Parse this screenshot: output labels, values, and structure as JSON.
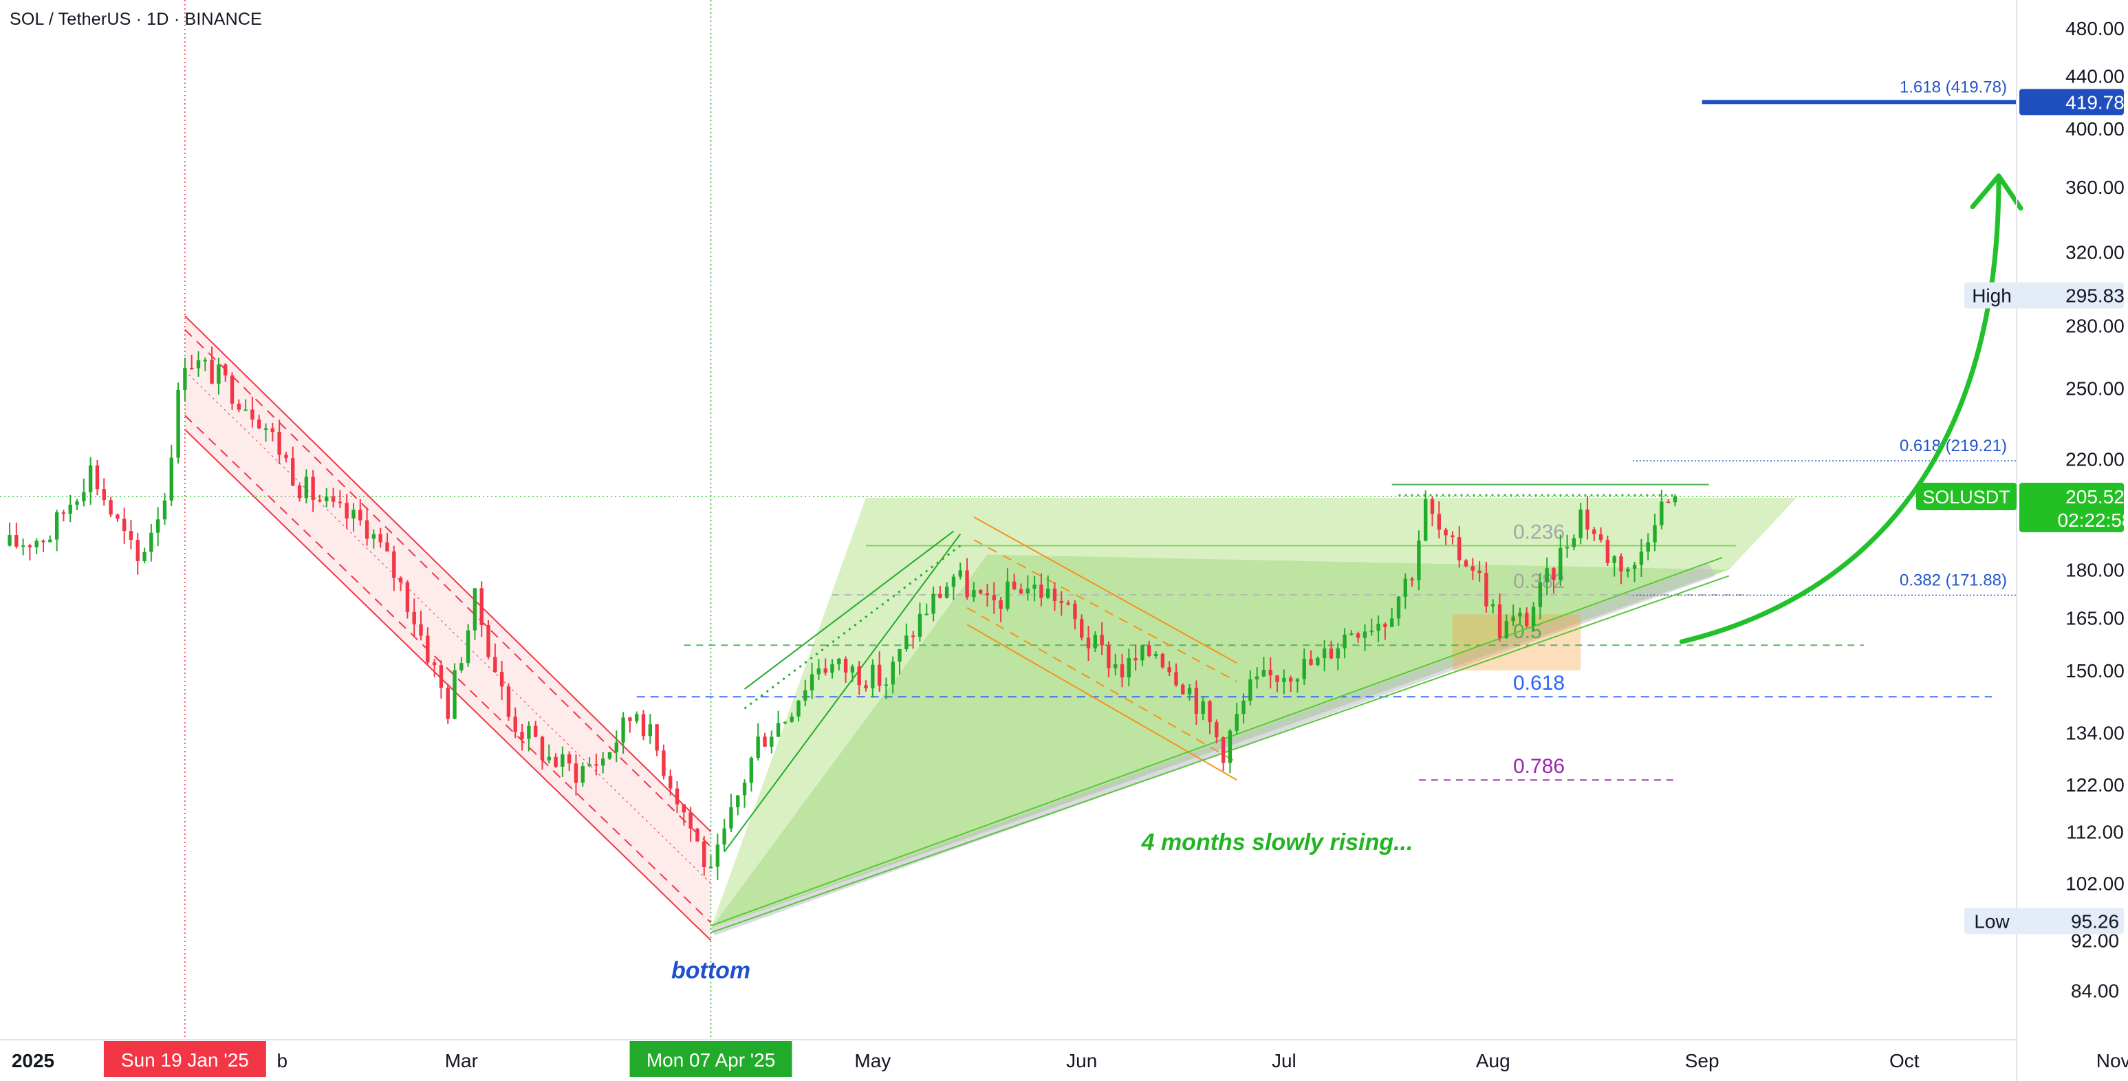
{
  "header": {
    "symbol": "SOL / TetherUS · 1D · BINANCE"
  },
  "colors": {
    "up": "#089981",
    "up_candle": "#22ab2b",
    "down": "#f23645",
    "fill_green": "#c5ecac",
    "fib_blue": "#2255cc",
    "channel_red": "#f23645",
    "channel_orange": "#f7931a",
    "arrow_green": "#22c02b",
    "purple": "#9c27b0",
    "price_tag_green": "#22c022"
  },
  "chart_data": {
    "type": "candlestick",
    "symbol": "SOL / TetherUS",
    "interval": "1D",
    "exchange": "BINANCE",
    "y_scale": "log",
    "ylim": [
      78,
      500
    ],
    "price_ticks": [
      "480.00",
      "440.00",
      "400.00",
      "360.00",
      "320.00",
      "280.00",
      "250.00",
      "220.00",
      "180.00",
      "165.00",
      "150.00",
      "134.00",
      "122.00",
      "112.00",
      "102.00",
      "92.00",
      "84.00"
    ],
    "x_ticks": [
      {
        "label": "2025",
        "date": "2025-01-01"
      },
      {
        "label": "Mar",
        "date": "2025-03-01"
      },
      {
        "label": "May",
        "date": "2025-05-01"
      },
      {
        "label": "Jun",
        "date": "2025-06-01"
      },
      {
        "label": "Jul",
        "date": "2025-07-01"
      },
      {
        "label": "Aug",
        "date": "2025-08-01"
      },
      {
        "label": "Sep",
        "date": "2025-09-01"
      },
      {
        "label": "Oct",
        "date": "2025-10-01"
      },
      {
        "label": "Nov",
        "date": "2025-11-01"
      }
    ],
    "feb_partial_label": "b",
    "first_candle_date": "2024-12-24",
    "last_candle_date": "2025-08-28",
    "close_path": [
      [
        "2024-12-24",
        188
      ],
      [
        "2024-12-30",
        192
      ],
      [
        "2025-01-05",
        216
      ],
      [
        "2025-01-08",
        200
      ],
      [
        "2025-01-12",
        182
      ],
      [
        "2025-01-16",
        206
      ],
      [
        "2025-01-19",
        265
      ],
      [
        "2025-01-24",
        255
      ],
      [
        "2025-01-30",
        238
      ],
      [
        "2025-02-05",
        210
      ],
      [
        "2025-02-10",
        200
      ],
      [
        "2025-02-15",
        195
      ],
      [
        "2025-02-20",
        175
      ],
      [
        "2025-02-27",
        140
      ],
      [
        "2025-03-03",
        170
      ],
      [
        "2025-03-08",
        138
      ],
      [
        "2025-03-14",
        128
      ],
      [
        "2025-03-18",
        125
      ],
      [
        "2025-03-22",
        128
      ],
      [
        "2025-03-27",
        140
      ],
      [
        "2025-04-01",
        123
      ],
      [
        "2025-04-07",
        103
      ],
      [
        "2025-04-10",
        115
      ],
      [
        "2025-04-14",
        132
      ],
      [
        "2025-04-18",
        138
      ],
      [
        "2025-04-23",
        152
      ],
      [
        "2025-04-28",
        150
      ],
      [
        "2025-05-03",
        147
      ],
      [
        "2025-05-08",
        165
      ],
      [
        "2025-05-13",
        178
      ],
      [
        "2025-05-18",
        168
      ],
      [
        "2025-05-23",
        175
      ],
      [
        "2025-05-28",
        172
      ],
      [
        "2025-06-02",
        158
      ],
      [
        "2025-06-07",
        150
      ],
      [
        "2025-06-12",
        156
      ],
      [
        "2025-06-17",
        145
      ],
      [
        "2025-06-22",
        130
      ],
      [
        "2025-06-26",
        145
      ],
      [
        "2025-07-01",
        150
      ],
      [
        "2025-07-06",
        152
      ],
      [
        "2025-07-11",
        162
      ],
      [
        "2025-07-16",
        165
      ],
      [
        "2025-07-20",
        180
      ],
      [
        "2025-07-22",
        202
      ],
      [
        "2025-07-25",
        188
      ],
      [
        "2025-07-29",
        182
      ],
      [
        "2025-08-02",
        162
      ],
      [
        "2025-08-06",
        165
      ],
      [
        "2025-08-10",
        180
      ],
      [
        "2025-08-14",
        200
      ],
      [
        "2025-08-18",
        185
      ],
      [
        "2025-08-22",
        180
      ],
      [
        "2025-08-25",
        200
      ],
      [
        "2025-08-28",
        205.52
      ]
    ],
    "current_price": {
      "symbol": "SOLUSDT",
      "value": "205.52",
      "countdown": "02:22:58"
    },
    "target": {
      "label": "1.618 (419.78)",
      "value": "419.78",
      "price": 419.78
    },
    "high": {
      "label": "High",
      "value": "295.83"
    },
    "low": {
      "label": "Low",
      "value": "95.26"
    },
    "fib_right": [
      {
        "label": "0.618 (219.21)",
        "price": 219.21
      },
      {
        "label": "0.382 (171.88)",
        "price": 171.88
      }
    ],
    "fib_center": [
      {
        "label": "0.236",
        "price": 188,
        "color": "#a5a5a5"
      },
      {
        "label": "0.382",
        "price": 172,
        "color": "#a5a5a5"
      },
      {
        "label": "0.5",
        "price": 157,
        "color": "#4caf50"
      },
      {
        "label": "0.618",
        "price": 143,
        "color": "#2962ff"
      },
      {
        "label": "0.786",
        "price": 123,
        "color": "#9c27b0"
      }
    ],
    "date_markers": [
      {
        "label": "Sun 19 Jan '25",
        "date": "2025-01-19",
        "color": "#f23645"
      },
      {
        "label": "Mon 07 Apr '25",
        "date": "2025-04-07",
        "color": "#22ab2b"
      }
    ],
    "annotations": {
      "bottom": "bottom",
      "rising": "4 months slowly rising..."
    }
  }
}
